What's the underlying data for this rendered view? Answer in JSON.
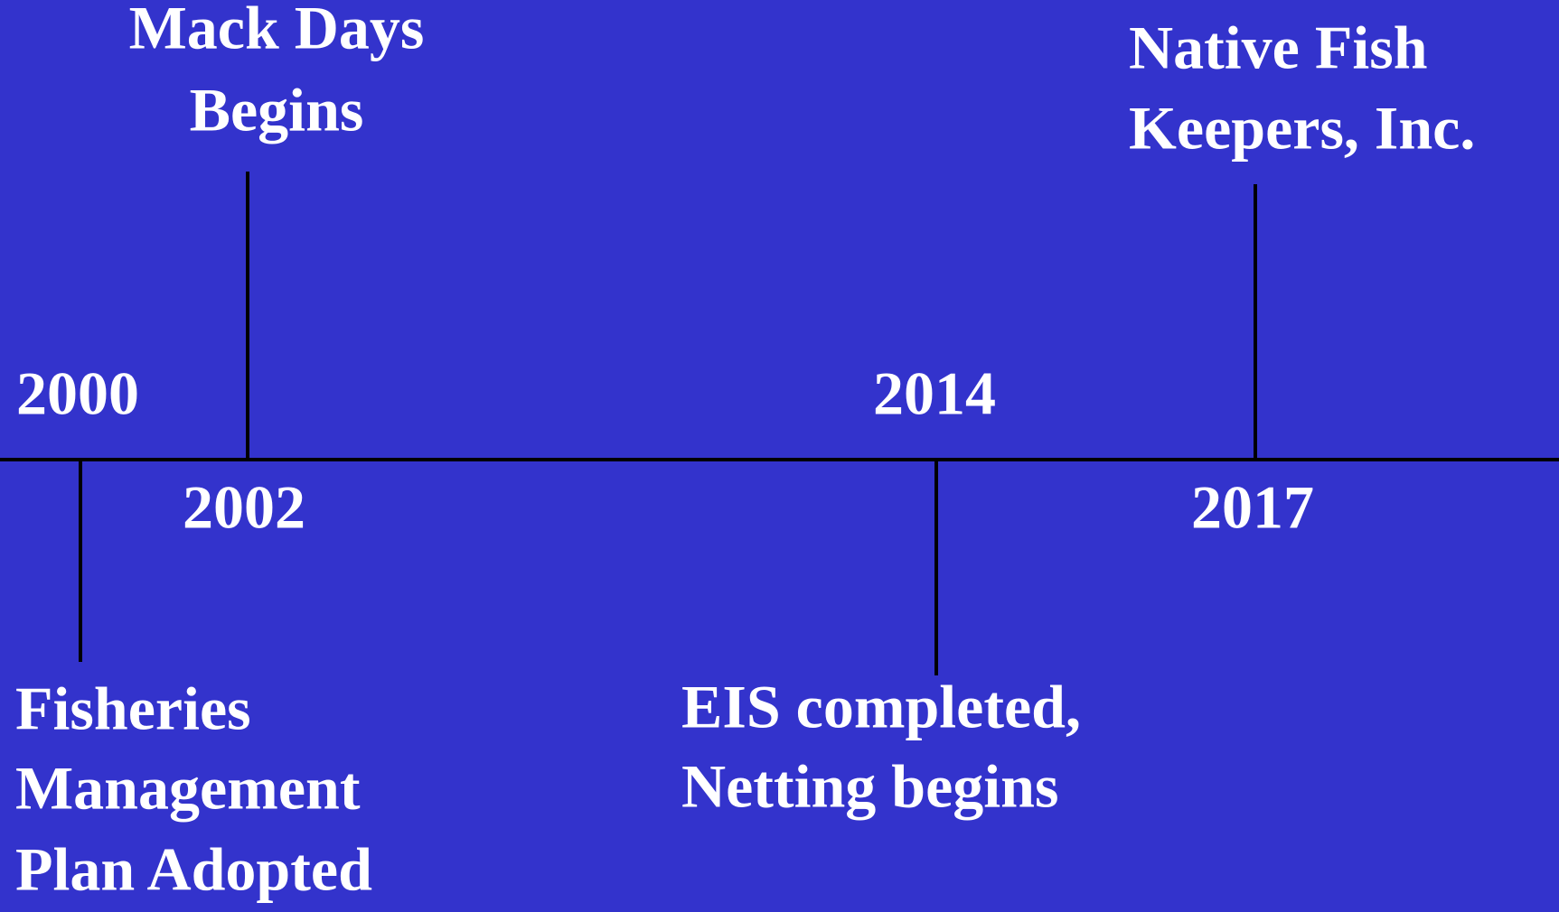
{
  "events": [
    {
      "year": "2000",
      "label": [
        "Fisheries",
        "Management",
        "Plan Adopted"
      ]
    },
    {
      "year": "2002",
      "label": [
        "Mack Days",
        "Begins"
      ]
    },
    {
      "year": "2014",
      "label": [
        "EIS completed,",
        "Netting begins"
      ]
    },
    {
      "year": "2017",
      "label": [
        "Native Fish",
        "Keepers, Inc."
      ]
    }
  ]
}
